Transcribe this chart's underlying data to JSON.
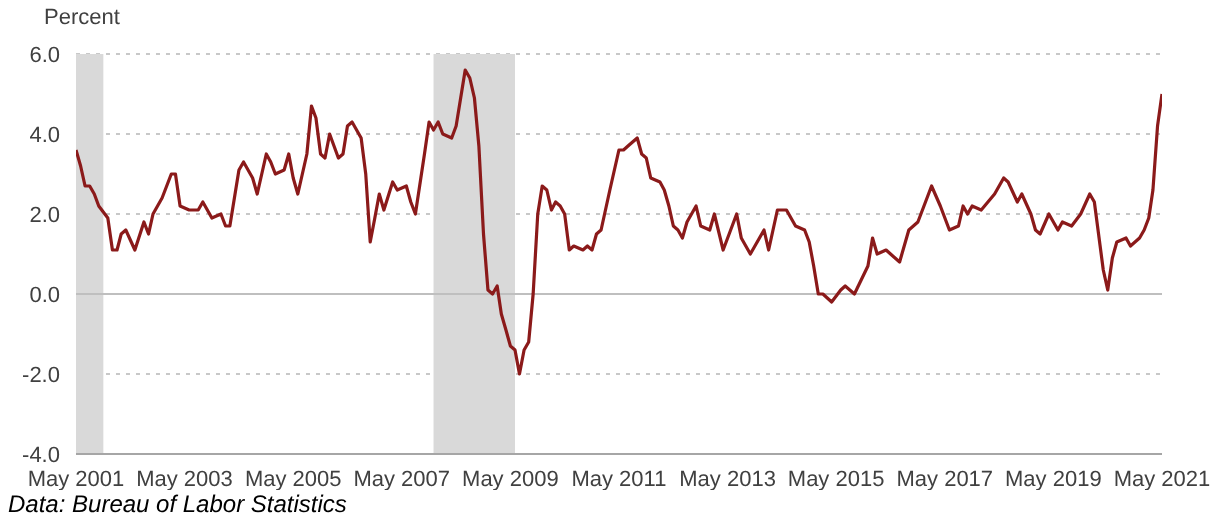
{
  "chart_data": {
    "type": "line",
    "ylabel": "Percent",
    "annotations": [
      "Data: Bureau of Labor Statistics"
    ],
    "x": [
      "2001-05",
      "2001-06",
      "2001-07",
      "2001-08",
      "2001-09",
      "2001-10",
      "2001-12",
      "2002-01",
      "2002-02",
      "2002-03",
      "2002-04",
      "2002-06",
      "2002-08",
      "2002-09",
      "2002-10",
      "2002-12",
      "2003-02",
      "2003-03",
      "2003-04",
      "2003-06",
      "2003-08",
      "2003-09",
      "2003-11",
      "2004-01",
      "2004-02",
      "2004-03",
      "2004-05",
      "2004-06",
      "2004-08",
      "2004-09",
      "2004-11",
      "2004-12",
      "2005-01",
      "2005-03",
      "2005-04",
      "2005-05",
      "2005-06",
      "2005-08",
      "2005-09",
      "2005-10",
      "2005-11",
      "2005-12",
      "2006-01",
      "2006-03",
      "2006-04",
      "2006-05",
      "2006-06",
      "2006-08",
      "2006-09",
      "2006-10",
      "2006-11",
      "2006-12",
      "2007-01",
      "2007-03",
      "2007-04",
      "2007-06",
      "2007-07",
      "2007-08",
      "2007-10",
      "2007-11",
      "2007-12",
      "2008-01",
      "2008-02",
      "2008-04",
      "2008-05",
      "2008-07",
      "2008-08",
      "2008-09",
      "2008-10",
      "2008-11",
      "2008-12",
      "2009-01",
      "2009-02",
      "2009-03",
      "2009-04",
      "2009-05",
      "2009-06",
      "2009-07",
      "2009-08",
      "2009-09",
      "2009-10",
      "2009-11",
      "2009-12",
      "2010-01",
      "2010-02",
      "2010-03",
      "2010-04",
      "2010-05",
      "2010-06",
      "2010-07",
      "2010-09",
      "2010-10",
      "2010-11",
      "2010-12",
      "2011-01",
      "2011-03",
      "2011-05",
      "2011-06",
      "2011-07",
      "2011-09",
      "2011-10",
      "2011-11",
      "2011-12",
      "2012-02",
      "2012-03",
      "2012-04",
      "2012-05",
      "2012-06",
      "2012-07",
      "2012-08",
      "2012-10",
      "2012-11",
      "2013-01",
      "2013-02",
      "2013-04",
      "2013-07",
      "2013-08",
      "2013-10",
      "2014-01",
      "2014-02",
      "2014-04",
      "2014-06",
      "2014-08",
      "2014-10",
      "2014-11",
      "2014-12",
      "2015-01",
      "2015-02",
      "2015-04",
      "2015-06",
      "2015-07",
      "2015-09",
      "2015-12",
      "2016-01",
      "2016-02",
      "2016-04",
      "2016-05",
      "2016-07",
      "2016-09",
      "2016-11",
      "2017-02",
      "2017-04",
      "2017-06",
      "2017-08",
      "2017-09",
      "2017-10",
      "2017-11",
      "2018-01",
      "2018-04",
      "2018-06",
      "2018-07",
      "2018-09",
      "2018-10",
      "2018-12",
      "2019-01",
      "2019-02",
      "2019-04",
      "2019-06",
      "2019-07",
      "2019-09",
      "2019-11",
      "2020-01",
      "2020-02",
      "2020-04",
      "2020-05",
      "2020-06",
      "2020-07",
      "2020-09",
      "2020-10",
      "2020-12",
      "2021-01",
      "2021-02",
      "2021-03",
      "2021-04",
      "2021-05"
    ],
    "series": [
      {
        "color": "#8b1a1a",
        "values": [
          3.6,
          3.2,
          2.7,
          2.7,
          2.5,
          2.2,
          1.9,
          1.1,
          1.1,
          1.5,
          1.6,
          1.1,
          1.8,
          1.5,
          2.0,
          2.4,
          3.0,
          3.0,
          2.2,
          2.1,
          2.1,
          2.3,
          1.9,
          2.0,
          1.7,
          1.7,
          3.1,
          3.3,
          2.9,
          2.5,
          3.5,
          3.3,
          3.0,
          3.1,
          3.5,
          2.9,
          2.5,
          3.5,
          4.7,
          4.4,
          3.5,
          3.4,
          4.0,
          3.4,
          3.5,
          4.2,
          4.3,
          3.9,
          3.0,
          1.3,
          1.9,
          2.5,
          2.1,
          2.8,
          2.6,
          2.7,
          2.3,
          2.0,
          3.5,
          4.3,
          4.1,
          4.3,
          4.0,
          3.9,
          4.2,
          5.6,
          5.4,
          4.9,
          3.7,
          1.5,
          0.1,
          0.0,
          0.2,
          -0.5,
          -0.9,
          -1.3,
          -1.4,
          -2.0,
          -1.4,
          -1.2,
          0.0,
          2.0,
          2.7,
          2.6,
          2.1,
          2.3,
          2.2,
          2.0,
          1.1,
          1.2,
          1.1,
          1.2,
          1.1,
          1.5,
          1.6,
          2.6,
          3.6,
          3.6,
          3.7,
          3.9,
          3.5,
          3.4,
          2.9,
          2.8,
          2.6,
          2.2,
          1.7,
          1.6,
          1.4,
          1.8,
          2.2,
          1.7,
          1.6,
          2.0,
          1.1,
          2.0,
          1.4,
          1.0,
          1.6,
          1.1,
          2.1,
          2.1,
          1.7,
          1.6,
          1.3,
          0.7,
          0.0,
          0.0,
          -0.2,
          0.1,
          0.2,
          0.0,
          0.7,
          1.4,
          1.0,
          1.1,
          1.0,
          0.8,
          1.6,
          1.8,
          2.7,
          2.2,
          1.6,
          1.7,
          2.2,
          2.0,
          2.2,
          2.1,
          2.5,
          2.9,
          2.8,
          2.3,
          2.5,
          2.0,
          1.6,
          1.5,
          2.0,
          1.6,
          1.8,
          1.7,
          2.0,
          2.5,
          2.3,
          0.6,
          0.1,
          0.9,
          1.3,
          1.4,
          1.2,
          1.4,
          1.6,
          1.9,
          2.6,
          4.2,
          5.0
        ]
      }
    ],
    "xlim": [
      "2001-05",
      "2021-05"
    ],
    "xticks": [
      {
        "value": "2001-05",
        "label": "May 2001"
      },
      {
        "value": "2003-05",
        "label": "May 2003"
      },
      {
        "value": "2005-05",
        "label": "May 2005"
      },
      {
        "value": "2007-05",
        "label": "May 2007"
      },
      {
        "value": "2009-05",
        "label": "May 2009"
      },
      {
        "value": "2011-05",
        "label": "May 2011"
      },
      {
        "value": "2013-05",
        "label": "May 2013"
      },
      {
        "value": "2015-05",
        "label": "May 2015"
      },
      {
        "value": "2017-05",
        "label": "May 2017"
      },
      {
        "value": "2019-05",
        "label": "May 2019"
      },
      {
        "value": "2021-05",
        "label": "May 2021"
      }
    ],
    "ylim": [
      -4,
      6
    ],
    "yticks": [
      {
        "value": -4,
        "label": "-4.0"
      },
      {
        "value": -2,
        "label": "-2.0"
      },
      {
        "value": 0,
        "label": "0.0"
      },
      {
        "value": 2,
        "label": "2.0"
      },
      {
        "value": 4,
        "label": "4.0"
      },
      {
        "value": 6,
        "label": "6.0"
      }
    ],
    "grid": "y",
    "marker": "none",
    "line_style": "solid",
    "legend": false,
    "bands": [
      {
        "axis": "x",
        "from": "2001-05",
        "to": "2001-11",
        "color": "#d9d9d9"
      },
      {
        "axis": "x",
        "from": "2007-12",
        "to": "2009-06",
        "color": "#d9d9d9"
      }
    ],
    "ref_lines": [
      {
        "axis": "y",
        "value": 0,
        "color": "#bfbfbf",
        "line_style": "solid"
      }
    ]
  }
}
